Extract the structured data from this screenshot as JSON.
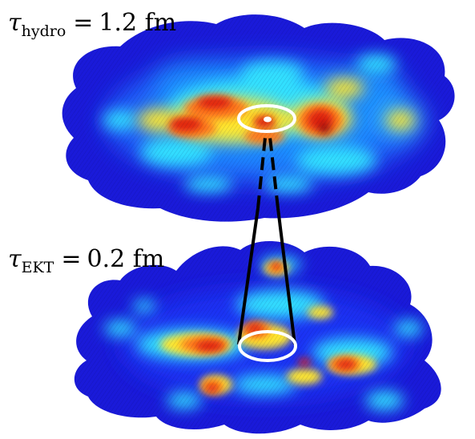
{
  "labels": {
    "top": {
      "symbol": "τ",
      "subscript": "hydro",
      "equals": "=",
      "value": "1.2 fm"
    },
    "bottom": {
      "symbol": "τ",
      "subscript": "EKT",
      "equals": "=",
      "value": "0.2 fm"
    }
  },
  "colors": {
    "background_blue": "#1a1ad9",
    "deep_blue": "#0a0a8c",
    "light_blue": "#1e8cff",
    "cyan": "#33e0ff",
    "yellow": "#ffe62e",
    "orange": "#ff7a1a",
    "red": "#e0200e",
    "dark_red": "#960b0b",
    "ring": "#ffffff",
    "connector": "#000000"
  }
}
